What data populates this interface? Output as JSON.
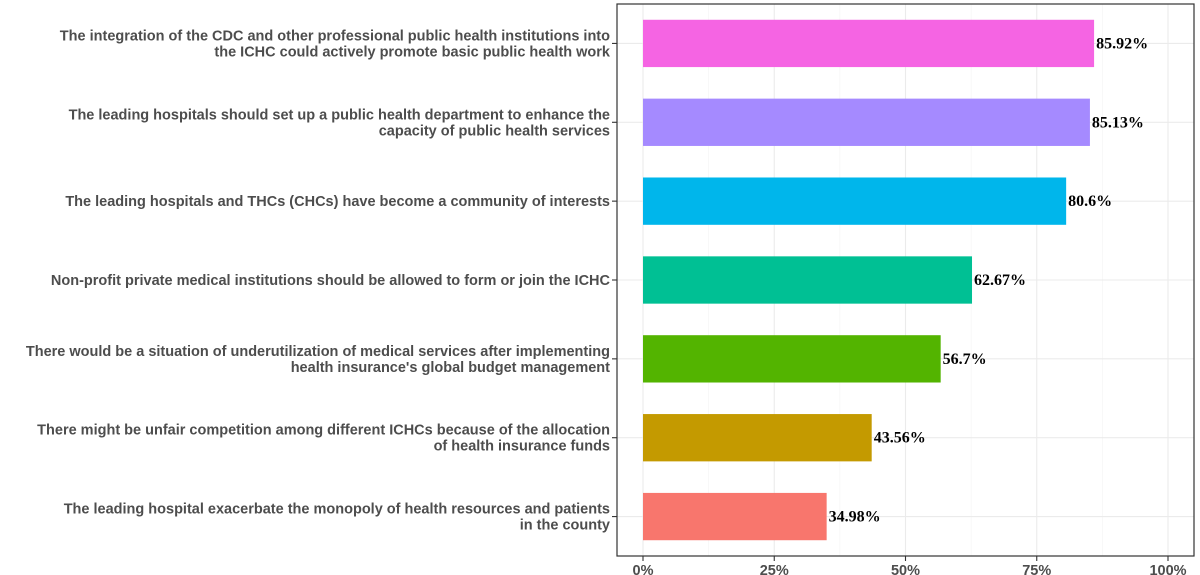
{
  "chart_data": {
    "type": "bar",
    "orientation": "horizontal",
    "title": "",
    "xlabel": "",
    "ylabel": "",
    "xlim": [
      0,
      100
    ],
    "grid": true,
    "x_ticks": [
      {
        "value": 0,
        "label": "0%"
      },
      {
        "value": 25,
        "label": "25%"
      },
      {
        "value": 50,
        "label": "50%"
      },
      {
        "value": 75,
        "label": "75%"
      },
      {
        "value": 100,
        "label": "100%"
      }
    ],
    "categories": [
      {
        "lines": [
          "The integration of the CDC and other professional public health institutions into",
          "the ICHC could actively promote basic public health work"
        ],
        "value": 85.92,
        "label": "85.92%",
        "color": "#F564E3"
      },
      {
        "lines": [
          "The leading hospitals should set up a public health department to enhance the",
          "capacity of public health services"
        ],
        "value": 85.13,
        "label": "85.13%",
        "color": "#A58AFF"
      },
      {
        "lines": [
          "The leading hospitals and THCs (CHCs) have become a community of interests"
        ],
        "value": 80.6,
        "label": "80.6%",
        "color": "#00B6EB"
      },
      {
        "lines": [
          "Non-profit private medical institutions should be allowed to form or join the ICHC"
        ],
        "value": 62.67,
        "label": "62.67%",
        "color": "#00C094"
      },
      {
        "lines": [
          "There would be a situation of underutilization of medical services after implementing",
          "health insurance's global budget management"
        ],
        "value": 56.7,
        "label": "56.7%",
        "color": "#53B400"
      },
      {
        "lines": [
          "There might be unfair competition among different ICHCs because of the allocation",
          "of health insurance funds"
        ],
        "value": 43.56,
        "label": "43.56%",
        "color": "#C49A00"
      },
      {
        "lines": [
          "The leading hospital exacerbate the monopoly of health resources and patients",
          "in the county"
        ],
        "value": 34.98,
        "label": "34.98%",
        "color": "#F8766D"
      }
    ]
  }
}
